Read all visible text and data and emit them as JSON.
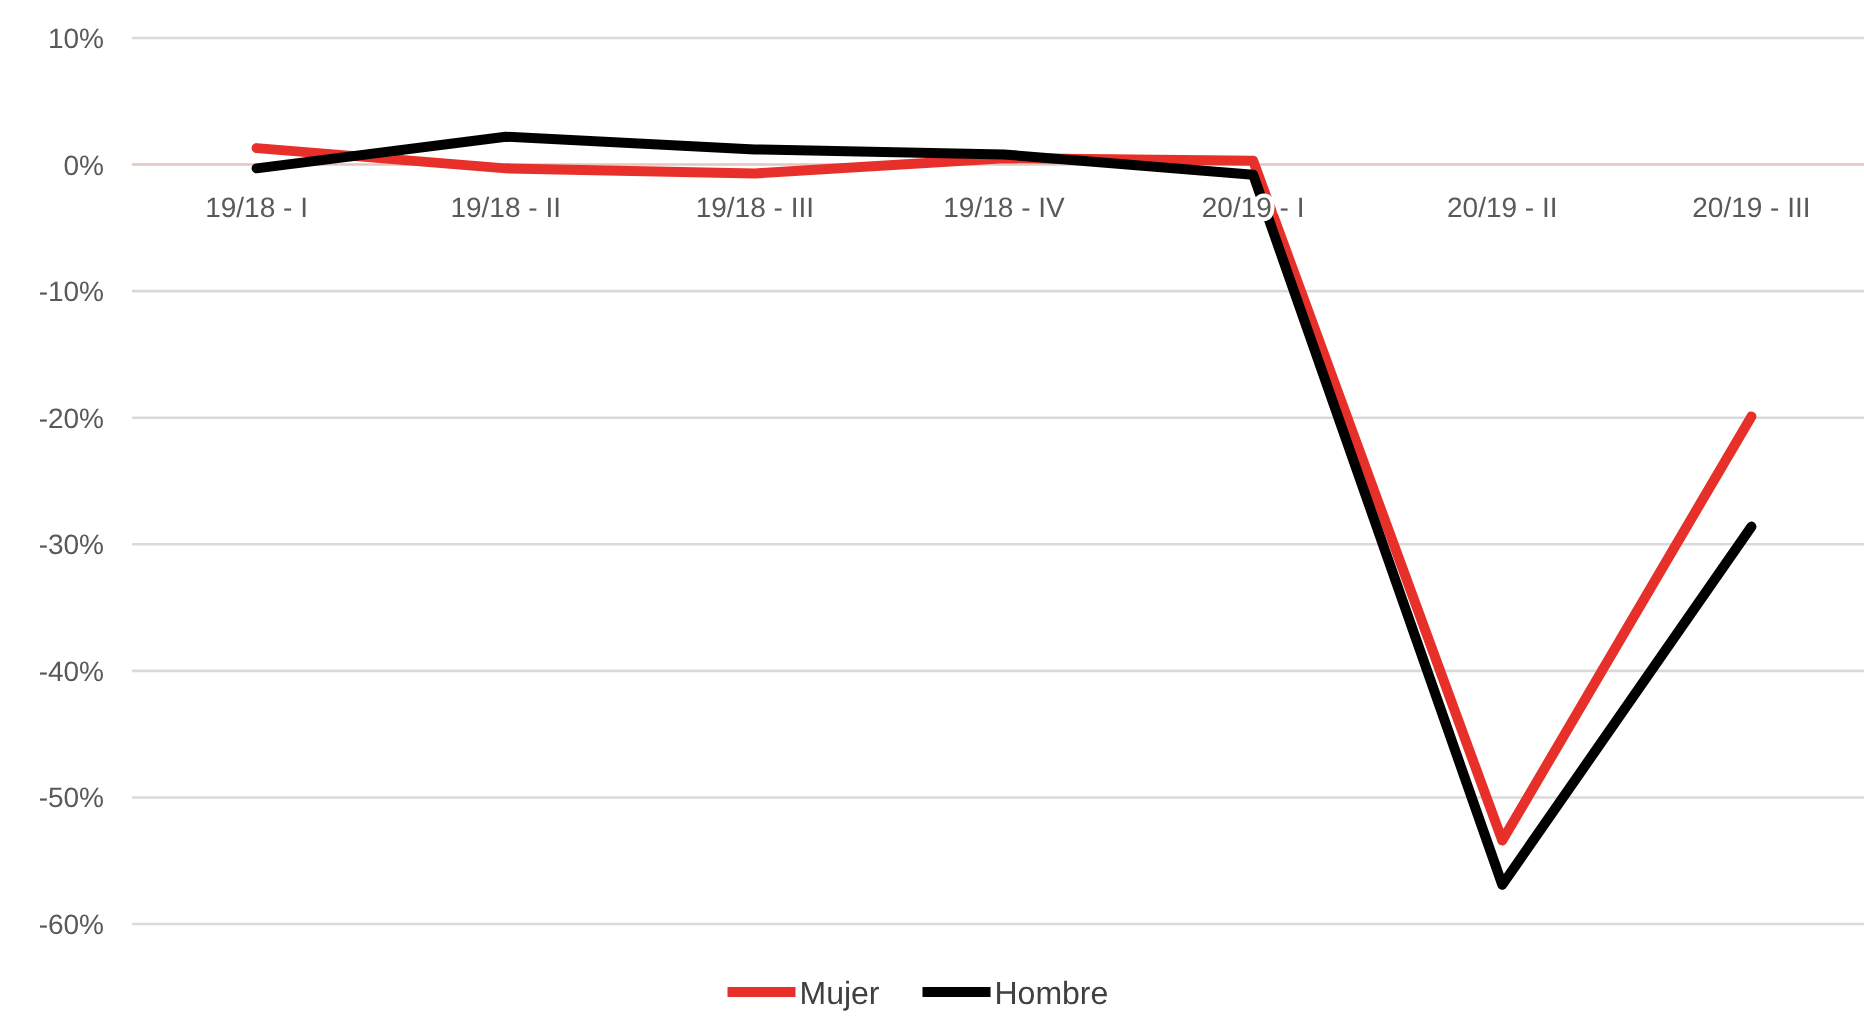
{
  "chart_data": {
    "type": "line",
    "categories": [
      "19/18 - I",
      "19/18 - II",
      "19/18 - III",
      "19/18 - IV",
      "20/19 - I",
      "20/19 - II",
      "20/19 - III"
    ],
    "series": [
      {
        "name": "Mujer",
        "color": "#e8302a",
        "values": [
          1.3,
          -0.3,
          -0.7,
          0.5,
          0.3,
          -53.4,
          -19.9
        ]
      },
      {
        "name": "Hombre",
        "color": "#000000",
        "values": [
          -0.3,
          2.2,
          1.2,
          0.8,
          -0.8,
          -56.9,
          -28.6
        ]
      }
    ],
    "ylim": [
      -60,
      10
    ],
    "yticks": [
      {
        "value": 10,
        "label": "10%"
      },
      {
        "value": 0,
        "label": "0%"
      },
      {
        "value": -10,
        "label": "-10%"
      },
      {
        "value": -20,
        "label": "-20%"
      },
      {
        "value": -30,
        "label": "-30%"
      },
      {
        "value": -40,
        "label": "-40%"
      },
      {
        "value": -50,
        "label": "-50%"
      },
      {
        "value": -60,
        "label": "-60%"
      }
    ],
    "grid": "y",
    "legend": "bottom",
    "marker": "none",
    "line_style": "solid"
  }
}
